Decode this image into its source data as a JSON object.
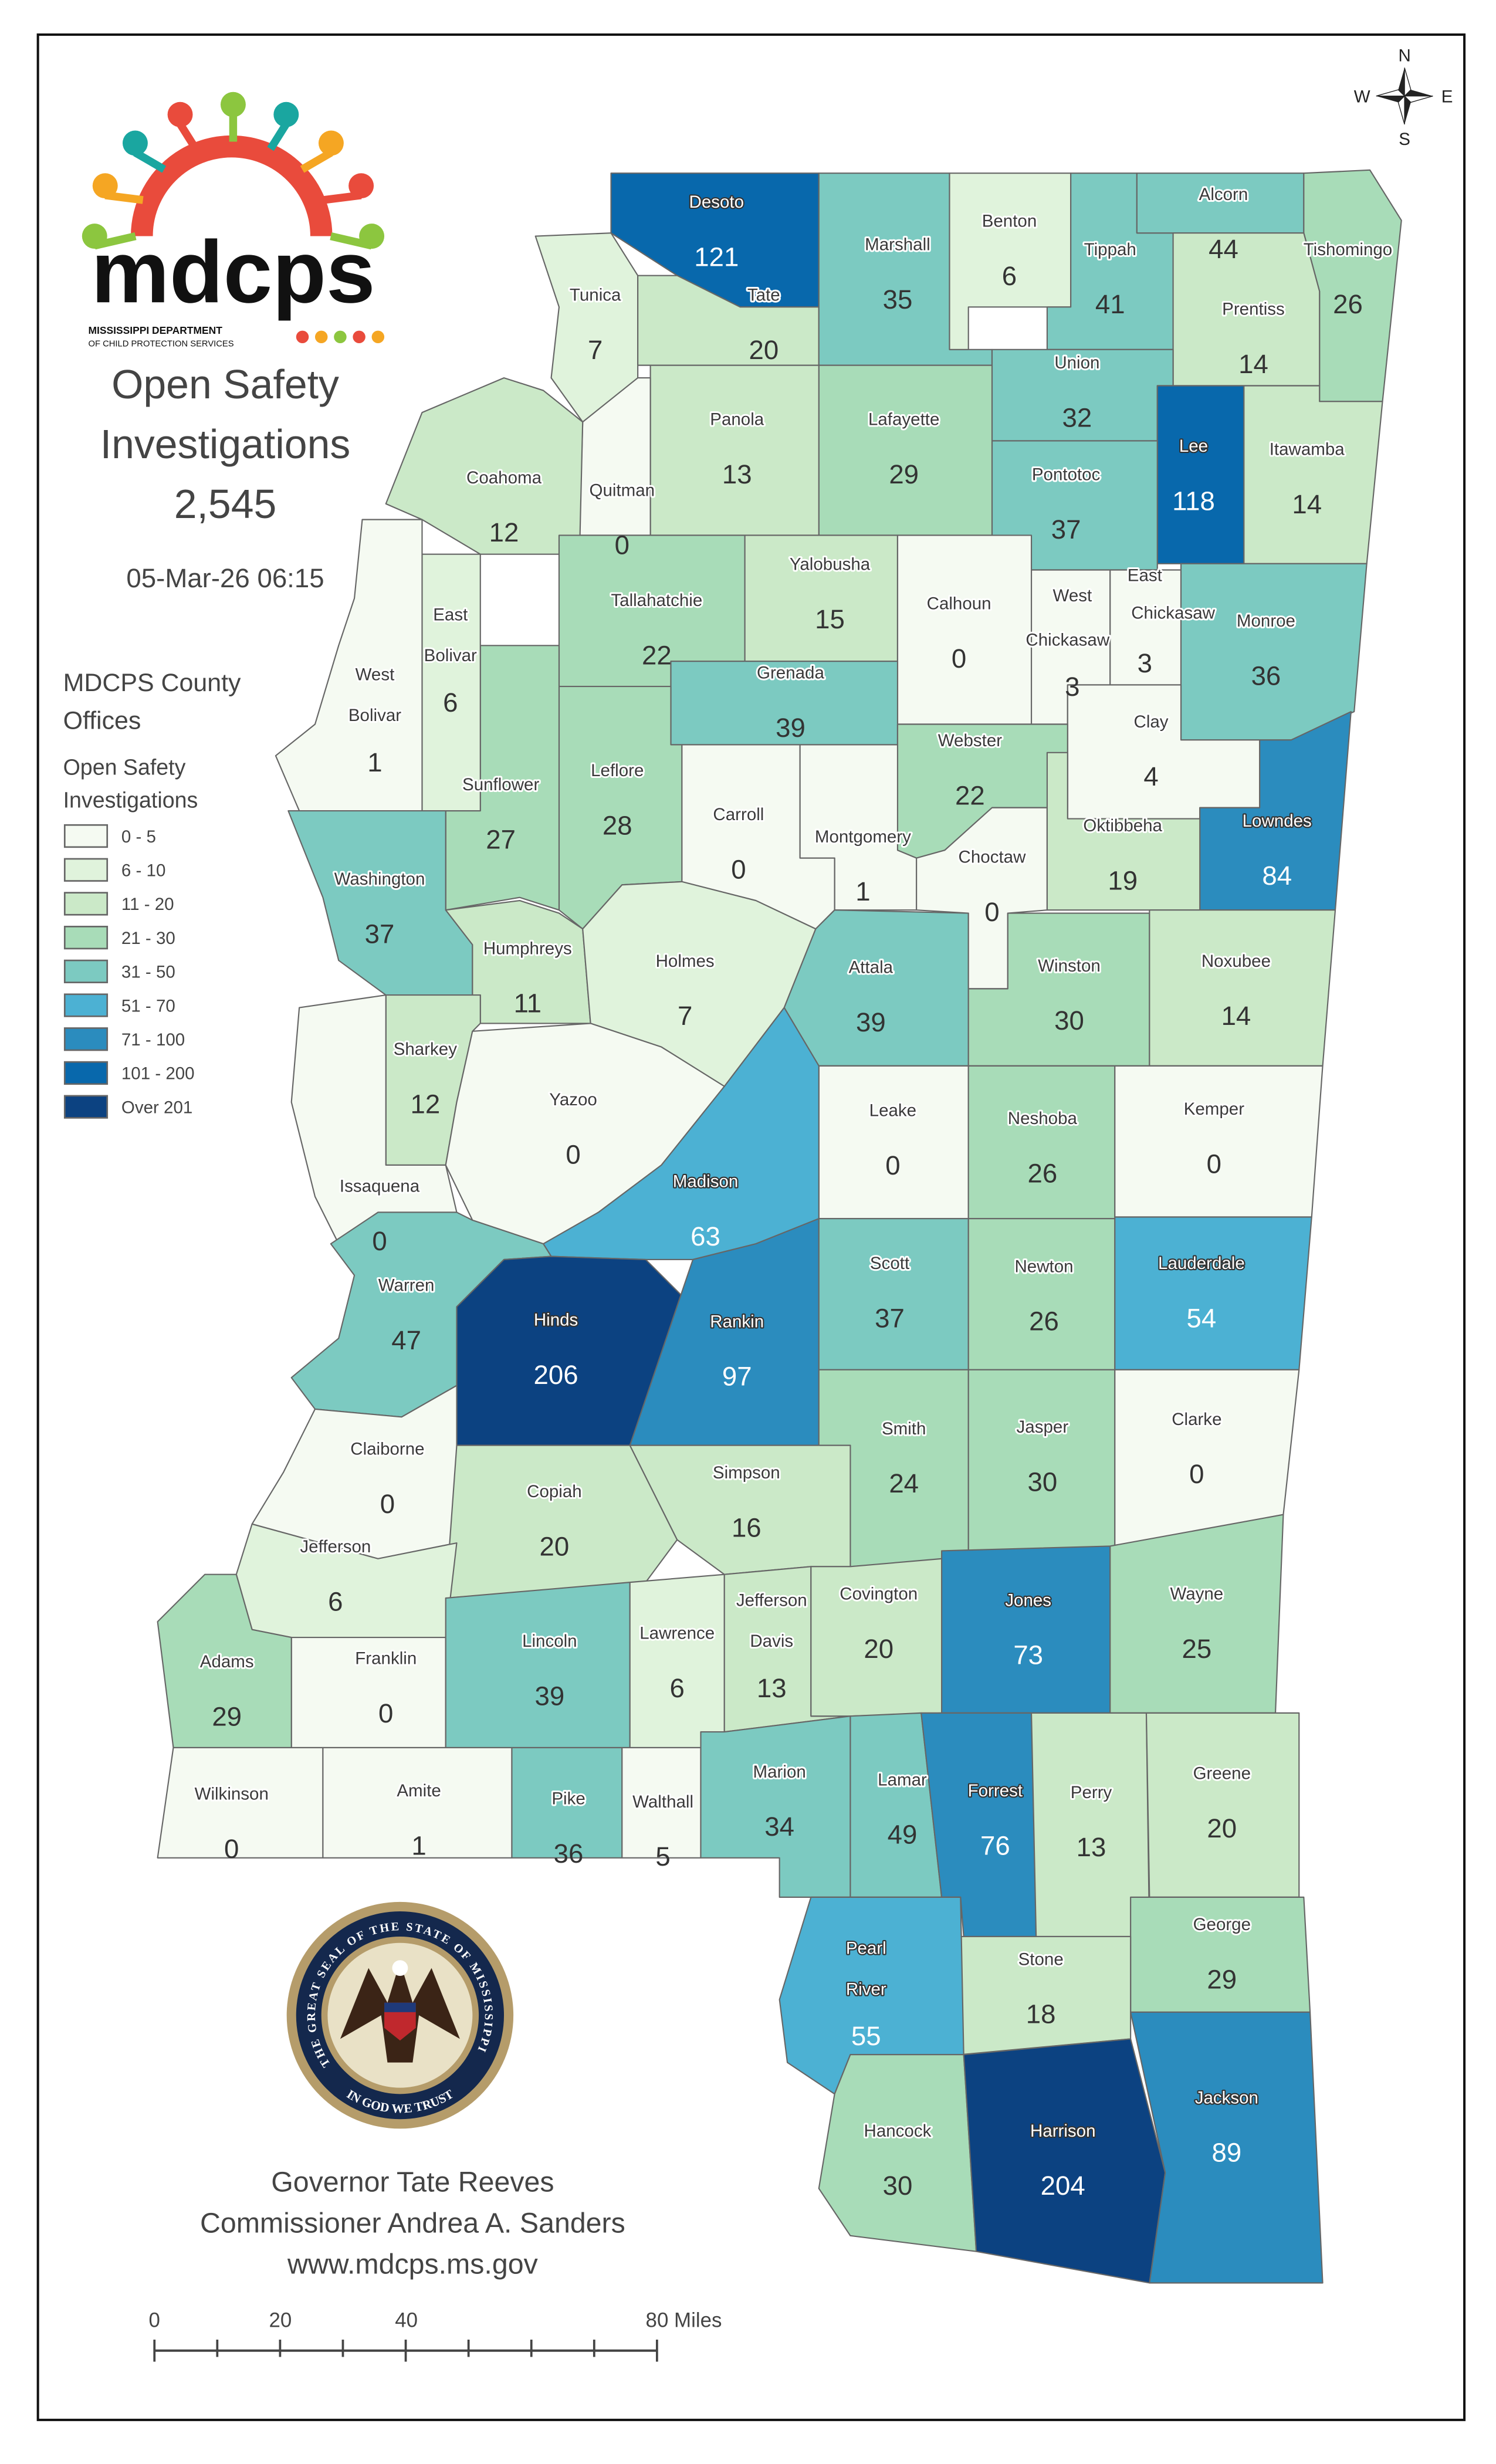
{
  "header": {
    "logo_text": "mdcps",
    "logo_subtext_1": "MISSISSIPPI DEPARTMENT",
    "logo_subtext_2": "OF CHILD PROTECTION SERVICES",
    "title_line1": "Open Safety",
    "title_line2": "Investigations",
    "total": "2,545",
    "timestamp": "05-Mar-26 06:15"
  },
  "compass": {
    "n": "N",
    "s": "S",
    "e": "E",
    "w": "W"
  },
  "legend": {
    "title_line1": "MDCPS County",
    "title_line2": "Offices",
    "subtitle_line1": "Open Safety",
    "subtitle_line2": "Investigations",
    "bins": [
      {
        "label": "0 - 5",
        "min": 0,
        "max": 5,
        "color": "#f5faf2"
      },
      {
        "label": "6 - 10",
        "min": 6,
        "max": 10,
        "color": "#e0f3dc"
      },
      {
        "label": "11 - 20",
        "min": 11,
        "max": 20,
        "color": "#cbe9c8"
      },
      {
        "label": "21 - 30",
        "min": 21,
        "max": 30,
        "color": "#a8dcb8"
      },
      {
        "label": "31 - 50",
        "min": 31,
        "max": 50,
        "color": "#7ccac1"
      },
      {
        "label": "51 - 70",
        "min": 51,
        "max": 70,
        "color": "#4cb1d3"
      },
      {
        "label": "71 - 100",
        "min": 71,
        "max": 100,
        "color": "#2b8cbe"
      },
      {
        "label": "101 - 200",
        "min": 101,
        "max": 200,
        "color": "#0868ac"
      },
      {
        "label": "Over 201",
        "min": 201,
        "max": 100000,
        "color": "#0c4281"
      }
    ]
  },
  "counties": [
    {
      "name": [
        "Desoto"
      ],
      "value": 121
    },
    {
      "name": [
        "Tunica"
      ],
      "value": 7
    },
    {
      "name": [
        "Tate"
      ],
      "value": 20
    },
    {
      "name": [
        "Marshall"
      ],
      "value": 35
    },
    {
      "name": [
        "Benton"
      ],
      "value": 6
    },
    {
      "name": [
        "Tippah"
      ],
      "value": 41
    },
    {
      "name": [
        "Alcorn"
      ],
      "value": 44
    },
    {
      "name": [
        "Tishomingo"
      ],
      "value": 26
    },
    {
      "name": [
        "Prentiss"
      ],
      "value": 14
    },
    {
      "name": [
        "Union"
      ],
      "value": 32
    },
    {
      "name": [
        "Lee"
      ],
      "value": 118
    },
    {
      "name": [
        "Itawamba"
      ],
      "value": 14
    },
    {
      "name": [
        "Pontotoc"
      ],
      "value": 37
    },
    {
      "name": [
        "Lafayette"
      ],
      "value": 29
    },
    {
      "name": [
        "Panola"
      ],
      "value": 13
    },
    {
      "name": [
        "Quitman"
      ],
      "value": 0
    },
    {
      "name": [
        "Coahoma"
      ],
      "value": 12
    },
    {
      "name": [
        "Tallahatchie"
      ],
      "value": 22
    },
    {
      "name": [
        "Yalobusha"
      ],
      "value": 15
    },
    {
      "name": [
        "Calhoun"
      ],
      "value": 0
    },
    {
      "name": [
        "West",
        "Chickasaw"
      ],
      "value": 3
    },
    {
      "name": [
        "East",
        "Chickasaw"
      ],
      "value": 3
    },
    {
      "name": [
        "Monroe"
      ],
      "value": 36
    },
    {
      "name": [
        "Grenada"
      ],
      "value": 39
    },
    {
      "name": [
        "Clay"
      ],
      "value": 4
    },
    {
      "name": [
        "Lowndes"
      ],
      "value": 84
    },
    {
      "name": [
        "Webster"
      ],
      "value": 22
    },
    {
      "name": [
        "Montgomery"
      ],
      "value": 1
    },
    {
      "name": [
        "Carroll"
      ],
      "value": 0
    },
    {
      "name": [
        "Leflore"
      ],
      "value": 28
    },
    {
      "name": [
        "Sunflower"
      ],
      "value": 27
    },
    {
      "name": [
        "East",
        "Bolivar"
      ],
      "value": 6
    },
    {
      "name": [
        "West",
        "Bolivar"
      ],
      "value": 1
    },
    {
      "name": [
        "Washington"
      ],
      "value": 37
    },
    {
      "name": [
        "Humphreys"
      ],
      "value": 11
    },
    {
      "name": [
        "Holmes"
      ],
      "value": 7
    },
    {
      "name": [
        "Sharkey"
      ],
      "value": 12
    },
    {
      "name": [
        "Yazoo"
      ],
      "value": 0
    },
    {
      "name": [
        "Issaquena"
      ],
      "value": 0
    },
    {
      "name": [
        "Attala"
      ],
      "value": 39
    },
    {
      "name": [
        "Choctaw"
      ],
      "value": 0
    },
    {
      "name": [
        "Oktibbeha"
      ],
      "value": 19
    },
    {
      "name": [
        "Winston"
      ],
      "value": 30
    },
    {
      "name": [
        "Noxubee"
      ],
      "value": 14
    },
    {
      "name": [
        "Leake"
      ],
      "value": 0
    },
    {
      "name": [
        "Neshoba"
      ],
      "value": 26
    },
    {
      "name": [
        "Kemper"
      ],
      "value": 0
    },
    {
      "name": [
        "Madison"
      ],
      "value": 63
    },
    {
      "name": [
        "Warren"
      ],
      "value": 47
    },
    {
      "name": [
        "Hinds"
      ],
      "value": 206
    },
    {
      "name": [
        "Rankin"
      ],
      "value": 97
    },
    {
      "name": [
        "Scott"
      ],
      "value": 37
    },
    {
      "name": [
        "Newton"
      ],
      "value": 26
    },
    {
      "name": [
        "Lauderdale"
      ],
      "value": 54
    },
    {
      "name": [
        "Smith"
      ],
      "value": 24
    },
    {
      "name": [
        "Jasper"
      ],
      "value": 30
    },
    {
      "name": [
        "Clarke"
      ],
      "value": 0
    },
    {
      "name": [
        "Claiborne"
      ],
      "value": 0
    },
    {
      "name": [
        "Copiah"
      ],
      "value": 20
    },
    {
      "name": [
        "Simpson"
      ],
      "value": 16
    },
    {
      "name": [
        "Jefferson"
      ],
      "value": 6
    },
    {
      "name": [
        "Franklin"
      ],
      "value": 0
    },
    {
      "name": [
        "Lincoln"
      ],
      "value": 39
    },
    {
      "name": [
        "Lawrence"
      ],
      "value": 6
    },
    {
      "name": [
        "Jefferson",
        "Davis"
      ],
      "value": 13
    },
    {
      "name": [
        "Covington"
      ],
      "value": 20
    },
    {
      "name": [
        "Jones"
      ],
      "value": 73
    },
    {
      "name": [
        "Wayne"
      ],
      "value": 25
    },
    {
      "name": [
        "Adams"
      ],
      "value": 29
    },
    {
      "name": [
        "Wilkinson"
      ],
      "value": 0
    },
    {
      "name": [
        "Amite"
      ],
      "value": 1
    },
    {
      "name": [
        "Pike"
      ],
      "value": 36
    },
    {
      "name": [
        "Walthall"
      ],
      "value": 5
    },
    {
      "name": [
        "Marion"
      ],
      "value": 34
    },
    {
      "name": [
        "Lamar"
      ],
      "value": 49
    },
    {
      "name": [
        "Forrest"
      ],
      "value": 76
    },
    {
      "name": [
        "Perry"
      ],
      "value": 13
    },
    {
      "name": [
        "Greene"
      ],
      "value": 20
    },
    {
      "name": [
        "George"
      ],
      "value": 29
    },
    {
      "name": [
        "Stone"
      ],
      "value": 18
    },
    {
      "name": [
        "Pearl",
        "River"
      ],
      "value": 55
    },
    {
      "name": [
        "Hancock"
      ],
      "value": 30
    },
    {
      "name": [
        "Harrison"
      ],
      "value": 204
    },
    {
      "name": [
        "Jackson"
      ],
      "value": 89
    }
  ],
  "seal": {
    "ring_text": "THE GREAT SEAL OF THE STATE OF MISSISSIPPI",
    "motto": "IN GOD WE TRUST"
  },
  "footer": {
    "governor": "Governor Tate Reeves",
    "commissioner": "Commissioner Andrea A. Sanders",
    "website": "www.mdcps.ms.gov"
  },
  "scale_bar": {
    "labels": [
      "0",
      "20",
      "40",
      "80 Miles"
    ]
  }
}
